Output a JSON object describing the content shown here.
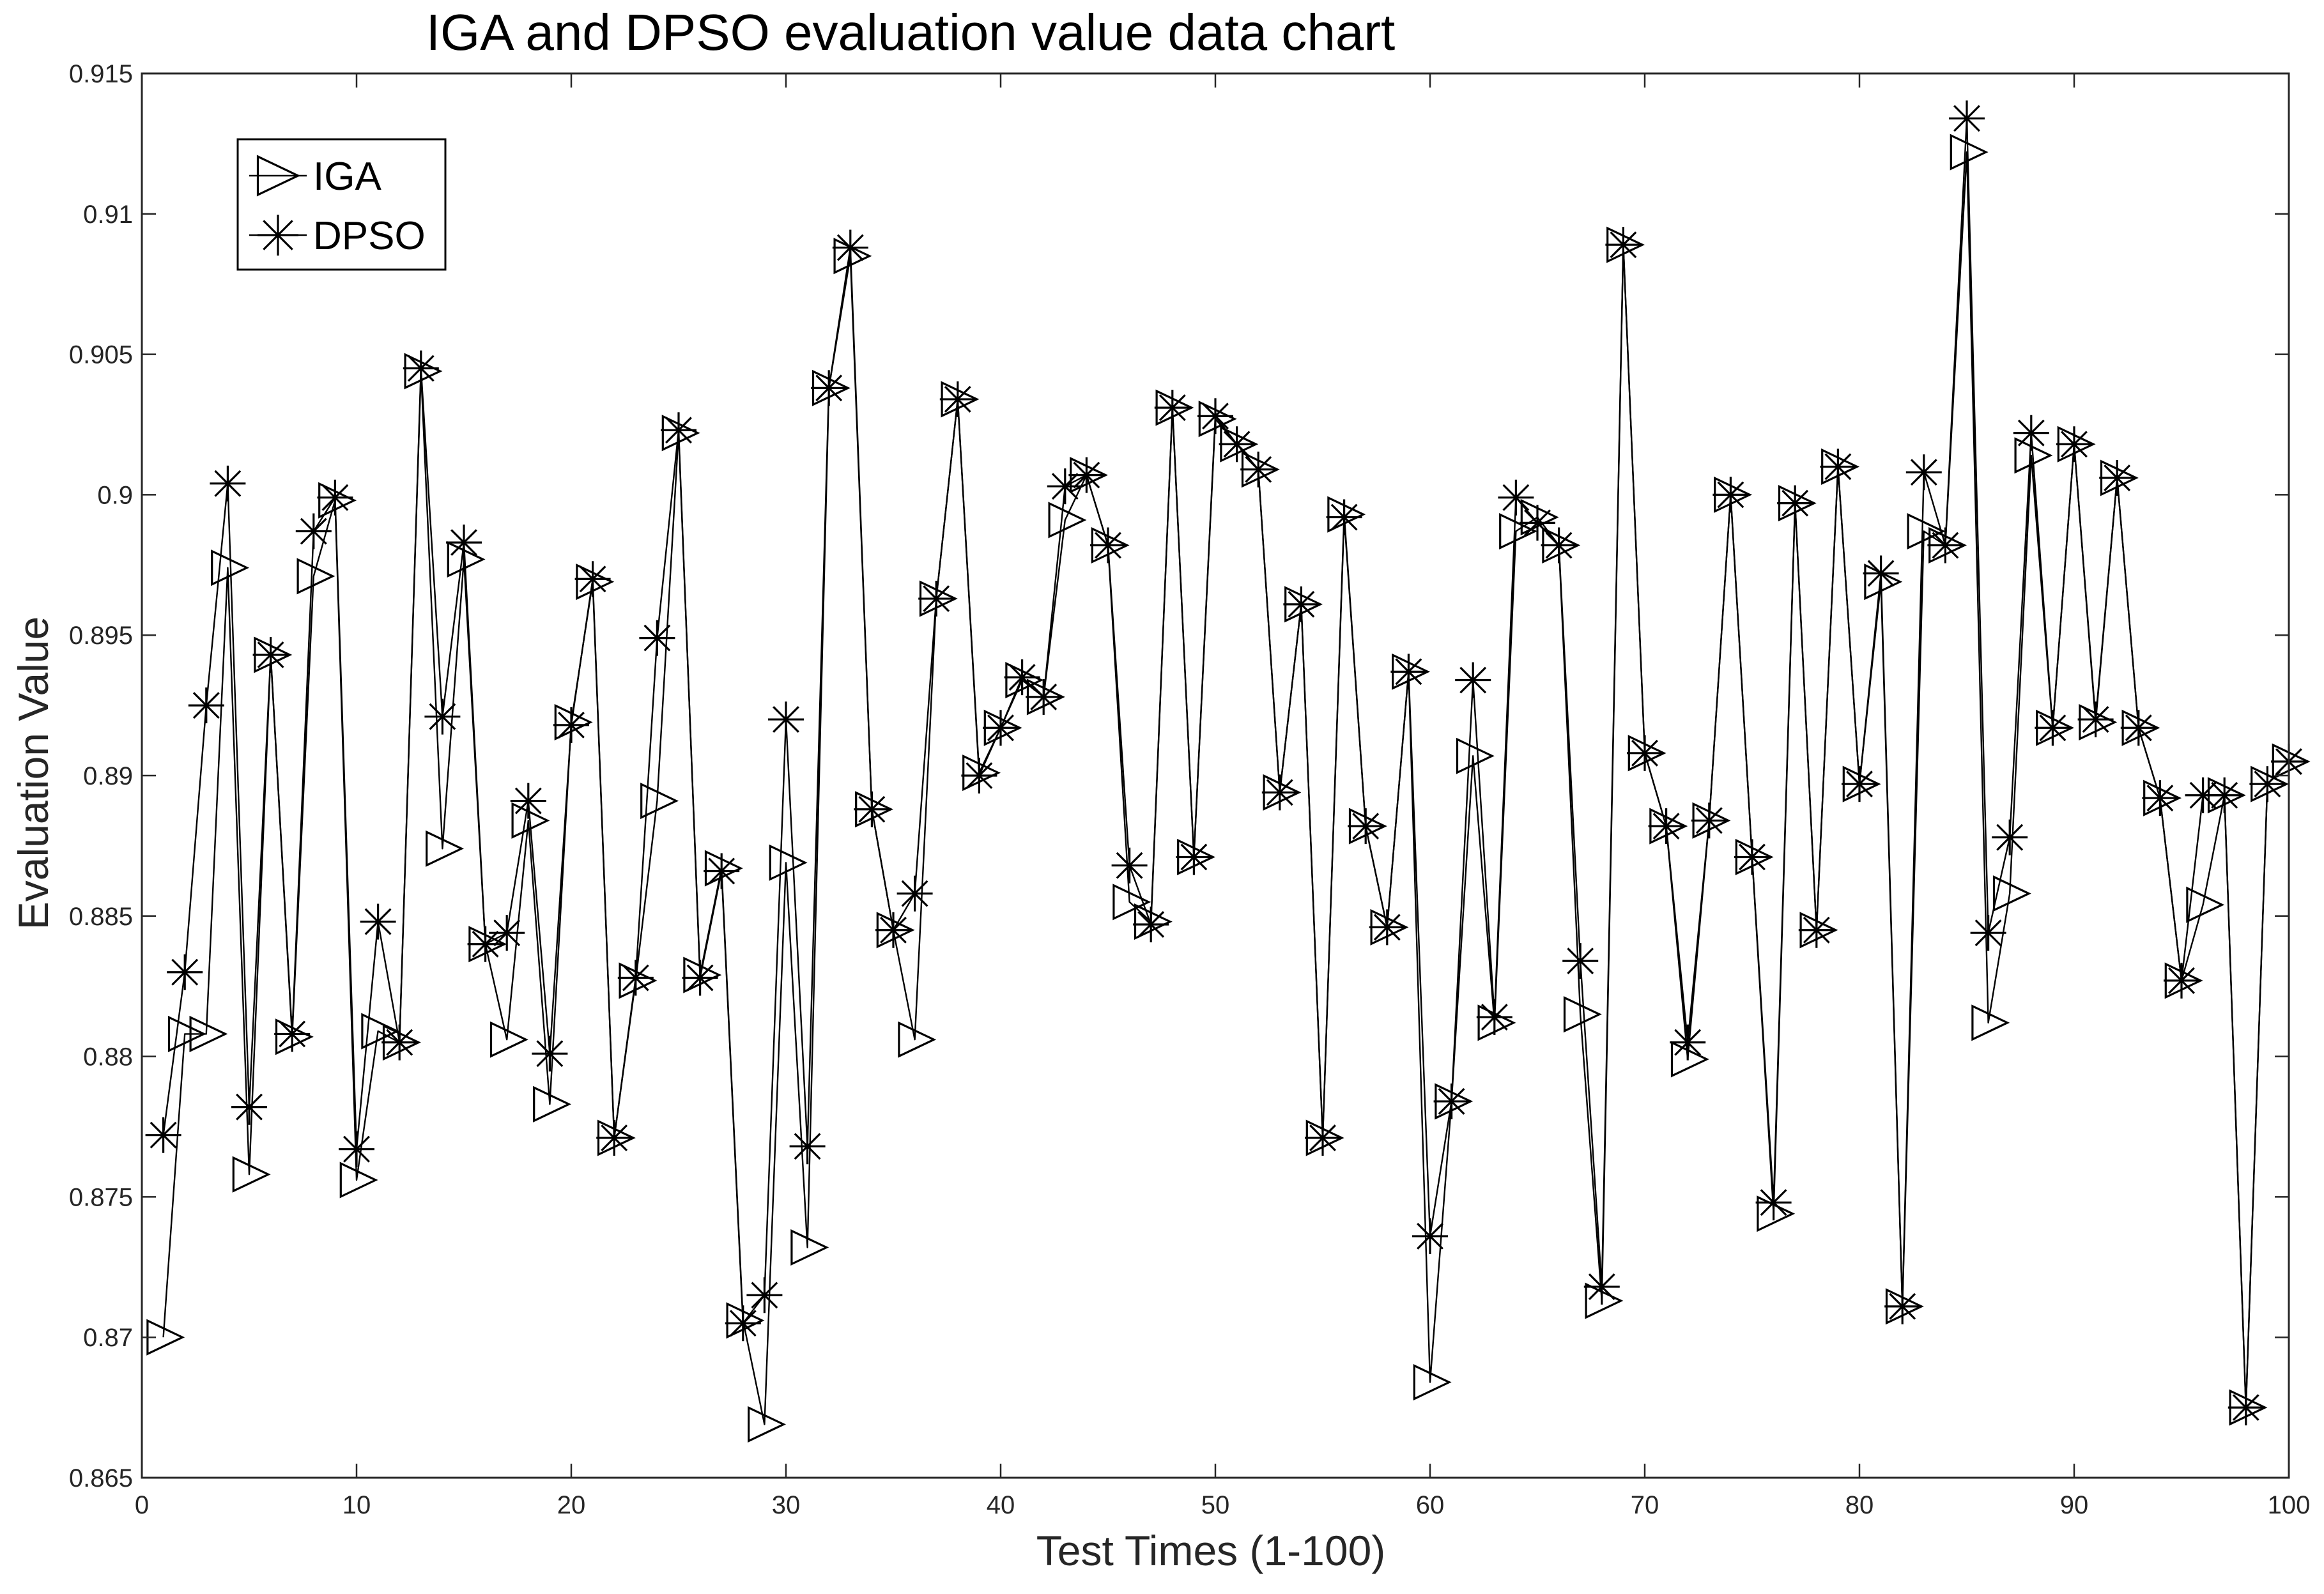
{
  "chart_data": {
    "type": "line",
    "title": "IGA and DPSO evaluation value data chart",
    "xlabel": "Test Times (1-100)",
    "ylabel": "Evaluation Value",
    "xlim": [
      0,
      100
    ],
    "ylim": [
      0.865,
      0.915
    ],
    "grid": false,
    "legend_position": "top-left",
    "x_ticks": [
      0,
      10,
      20,
      30,
      40,
      50,
      60,
      70,
      80,
      90,
      100
    ],
    "x_tick_labels": [
      "0",
      "10",
      "20",
      "30",
      "40",
      "50",
      "60",
      "70",
      "80",
      "90",
      "100"
    ],
    "y_ticks": [
      0.865,
      0.87,
      0.875,
      0.88,
      0.885,
      0.89,
      0.895,
      0.9,
      0.905,
      0.91,
      0.915
    ],
    "y_tick_labels": [
      "0.865",
      "0.87",
      "0.875",
      "0.88",
      "0.885",
      "0.89",
      "0.895",
      "0.9",
      "0.905",
      "0.91",
      "0.915"
    ],
    "x": [
      1,
      2,
      3,
      4,
      5,
      6,
      7,
      8,
      9,
      10,
      11,
      12,
      13,
      14,
      15,
      16,
      17,
      18,
      19,
      20,
      21,
      22,
      23,
      24,
      25,
      26,
      27,
      28,
      29,
      30,
      31,
      32,
      33,
      34,
      35,
      36,
      37,
      38,
      39,
      40,
      41,
      42,
      43,
      44,
      45,
      46,
      47,
      48,
      49,
      50,
      51,
      52,
      53,
      54,
      55,
      56,
      57,
      58,
      59,
      60,
      61,
      62,
      63,
      64,
      65,
      66,
      67,
      68,
      69,
      70,
      71,
      72,
      73,
      74,
      75,
      76,
      77,
      78,
      79,
      80,
      81,
      82,
      83,
      84,
      85,
      86,
      87,
      88,
      89,
      90,
      91,
      92,
      93,
      94,
      95,
      96,
      97,
      98,
      99,
      100
    ],
    "series": [
      {
        "name": "IGA",
        "marker": "triangle-right",
        "color": "#000000",
        "values": [
          0.87,
          0.8808,
          0.8808,
          0.8974,
          0.8758,
          0.8943,
          0.8807,
          0.8971,
          0.8998,
          0.8756,
          0.8809,
          0.8805,
          0.9044,
          0.8874,
          0.8977,
          0.884,
          0.8806,
          0.8884,
          0.8783,
          0.8919,
          0.8969,
          0.8771,
          0.8827,
          0.8891,
          0.9022,
          0.8829,
          0.8867,
          0.8706,
          0.8669,
          0.8869,
          0.8732,
          0.9038,
          0.9085,
          0.8888,
          0.8845,
          0.8806,
          0.8963,
          0.9034,
          0.8901,
          0.8917,
          0.8934,
          0.8928,
          0.8991,
          0.9007,
          0.8982,
          0.8855,
          0.8848,
          0.9031,
          0.8871,
          0.9027,
          0.9018,
          0.9009,
          0.8894,
          0.8961,
          0.8771,
          0.8993,
          0.8882,
          0.8846,
          0.8937,
          0.8684,
          0.8784,
          0.8907,
          0.8812,
          0.8987,
          0.8992,
          0.8982,
          0.8815,
          0.8713,
          0.9089,
          0.8908,
          0.8882,
          0.8799,
          0.8884,
          0.9,
          0.8871,
          0.8744,
          0.8997,
          0.8845,
          0.901,
          0.8897,
          0.8969,
          0.8711,
          0.8987,
          0.8982,
          0.9122,
          0.8812,
          0.8858,
          0.9014,
          0.8917,
          0.9018,
          0.8919,
          0.9006,
          0.8917,
          0.8892,
          0.8827,
          0.8854,
          0.8893,
          0.8675,
          0.8897,
          0.8905
        ]
      },
      {
        "name": "DPSO",
        "marker": "asterisk",
        "color": "#000000",
        "values": [
          0.8772,
          0.883,
          0.8925,
          0.9004,
          0.8782,
          0.8943,
          0.8808,
          0.8987,
          0.8999,
          0.8767,
          0.8848,
          0.8805,
          0.9045,
          0.8921,
          0.8983,
          0.884,
          0.8844,
          0.8891,
          0.8801,
          0.8918,
          0.897,
          0.8771,
          0.8828,
          0.8949,
          0.9023,
          0.8828,
          0.8866,
          0.8705,
          0.8715,
          0.892,
          0.8768,
          0.9038,
          0.9088,
          0.8888,
          0.8845,
          0.8858,
          0.8963,
          0.9034,
          0.89,
          0.8917,
          0.8935,
          0.8928,
          0.9003,
          0.9007,
          0.8982,
          0.8868,
          0.8847,
          0.9031,
          0.8871,
          0.9028,
          0.9018,
          0.9009,
          0.8894,
          0.8961,
          0.8771,
          0.8992,
          0.8882,
          0.8846,
          0.8937,
          0.8736,
          0.8784,
          0.8934,
          0.8814,
          0.8999,
          0.899,
          0.8982,
          0.8834,
          0.8718,
          0.9089,
          0.8908,
          0.8882,
          0.8805,
          0.8884,
          0.9,
          0.8871,
          0.8748,
          0.8997,
          0.8845,
          0.901,
          0.8897,
          0.8972,
          0.8711,
          0.9008,
          0.8982,
          0.9134,
          0.8844,
          0.8878,
          0.9022,
          0.8917,
          0.9018,
          0.892,
          0.9006,
          0.8917,
          0.8892,
          0.8827,
          0.8893,
          0.8893,
          0.8675,
          0.8897,
          0.8905
        ]
      }
    ]
  }
}
